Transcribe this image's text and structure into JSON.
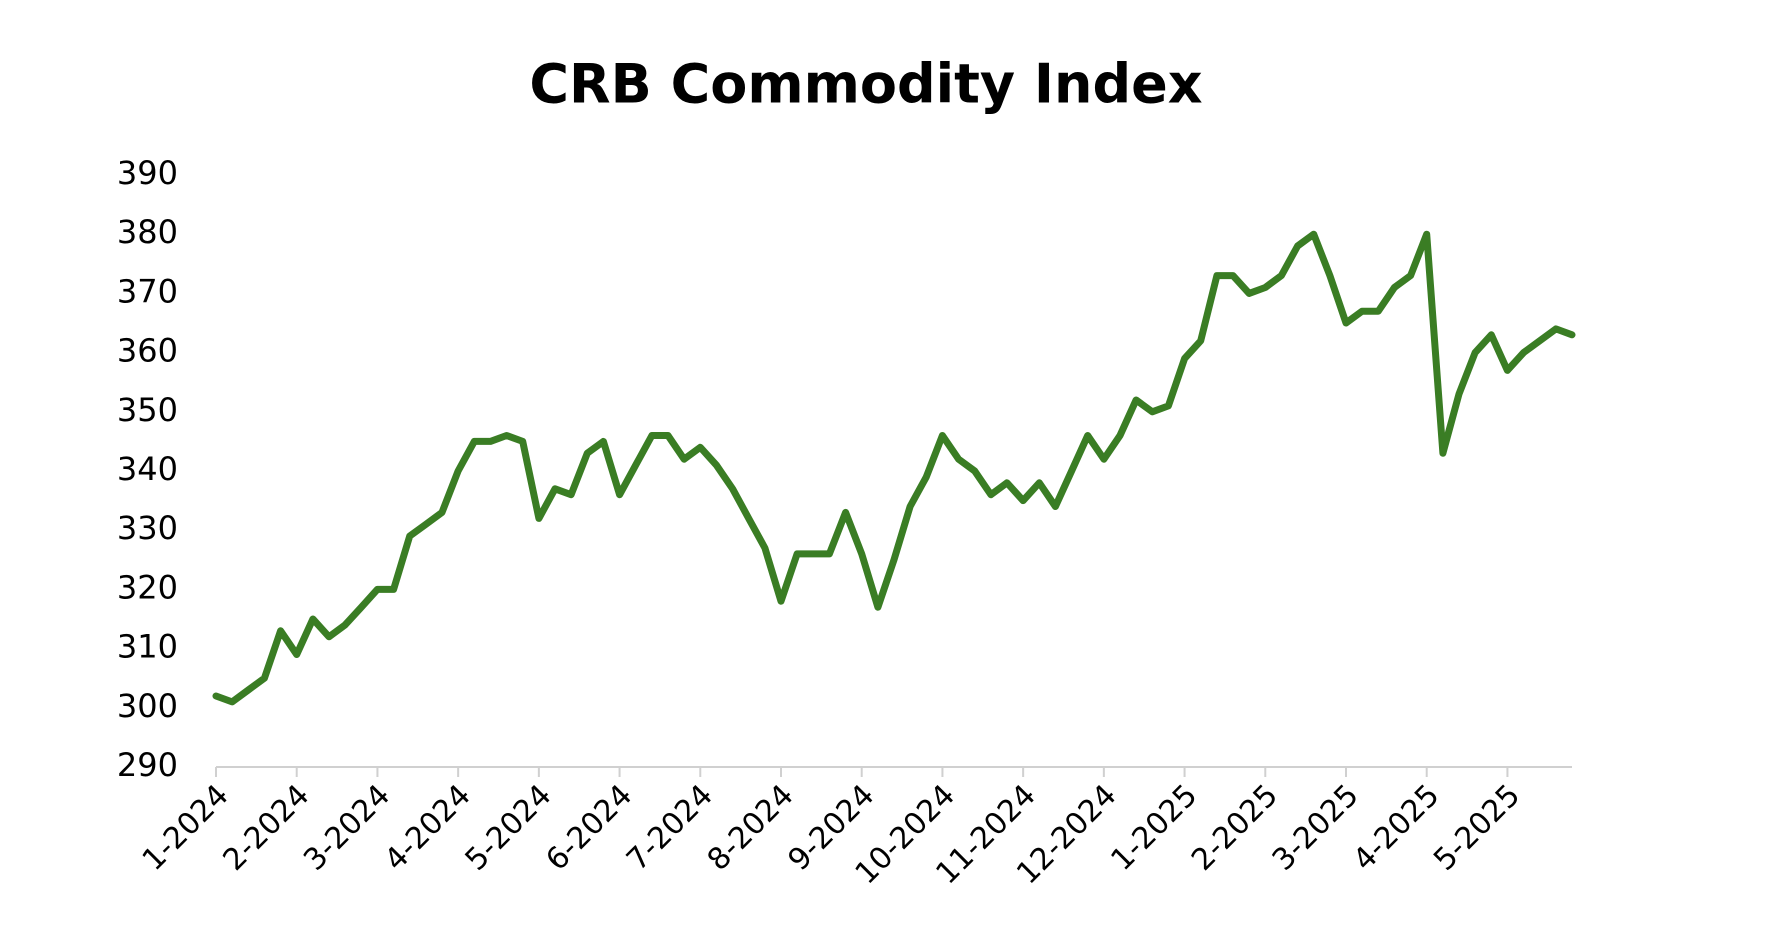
{
  "chart_data": {
    "type": "line",
    "title": "CRB Commodity Index",
    "categories": [
      "1-2024",
      null,
      null,
      null,
      null,
      "2-2024",
      null,
      null,
      null,
      null,
      "3-2024",
      null,
      null,
      null,
      null,
      "4-2024",
      null,
      null,
      null,
      null,
      "5-2024",
      null,
      null,
      null,
      null,
      "6-2024",
      null,
      null,
      null,
      null,
      "7-2024",
      null,
      null,
      null,
      null,
      "8-2024",
      null,
      null,
      null,
      null,
      "9-2024",
      null,
      null,
      null,
      null,
      "10-2024",
      null,
      null,
      null,
      null,
      "11-2024",
      null,
      null,
      null,
      null,
      "12-2024",
      null,
      null,
      null,
      null,
      "1-2025",
      null,
      null,
      null,
      null,
      "2-2025",
      null,
      null,
      null,
      null,
      "3-2025",
      null,
      null,
      null,
      null,
      "4-2025",
      null,
      null,
      null,
      null,
      "5-2025",
      null,
      null,
      null,
      null
    ],
    "values": [
      302,
      301,
      303,
      305,
      313,
      309,
      315,
      312,
      314,
      317,
      320,
      320,
      329,
      331,
      333,
      340,
      345,
      345,
      346,
      345,
      332,
      337,
      336,
      343,
      345,
      336,
      341,
      346,
      346,
      342,
      344,
      341,
      337,
      332,
      327,
      318,
      326,
      326,
      326,
      333,
      326,
      317,
      325,
      334,
      339,
      346,
      342,
      340,
      336,
      338,
      335,
      338,
      334,
      340,
      346,
      342,
      346,
      352,
      350,
      351,
      359,
      362,
      373,
      373,
      370,
      371,
      373,
      378,
      380,
      373,
      365,
      367,
      367,
      371,
      373,
      380,
      343,
      353,
      360,
      363,
      357,
      360,
      362,
      364,
      363
    ],
    "color": "#3a7d24",
    "ylim": [
      290,
      390
    ],
    "yticks": [
      290,
      300,
      310,
      320,
      330,
      340,
      350,
      360,
      370,
      380,
      390
    ]
  }
}
